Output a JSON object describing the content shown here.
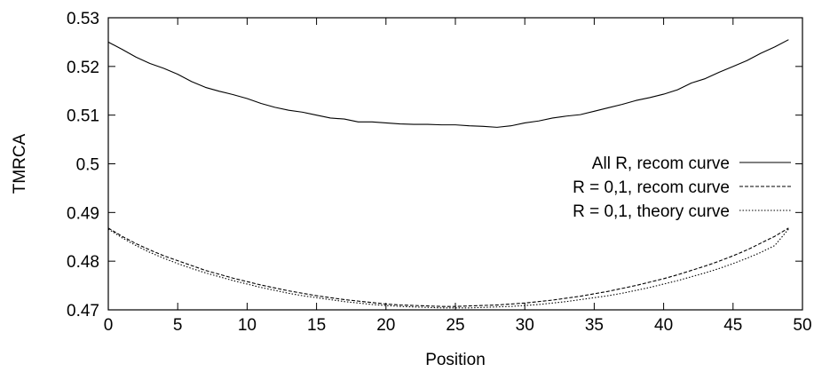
{
  "chart_data": {
    "type": "line",
    "title": "",
    "xlabel": "Position",
    "ylabel": "TMRCA",
    "xlim": [
      0,
      50
    ],
    "ylim": [
      0.47,
      0.53
    ],
    "xticks": [
      0,
      5,
      10,
      15,
      20,
      25,
      30,
      35,
      40,
      45,
      50
    ],
    "yticks": [
      0.47,
      0.48,
      0.49,
      0.5,
      0.51,
      0.52,
      0.53
    ],
    "xtick_labels": [
      "0",
      "5",
      "10",
      "15",
      "20",
      "25",
      "30",
      "35",
      "40",
      "45",
      "50"
    ],
    "ytick_labels": [
      "0.47",
      "0.48",
      "0.49",
      "0.5",
      "0.51",
      "0.52",
      "0.53"
    ],
    "grid": false,
    "legend_position": "right",
    "series": [
      {
        "name": "All R, recom curve",
        "style": "solid",
        "x": [
          0,
          1,
          2,
          3,
          4,
          5,
          6,
          7,
          8,
          9,
          10,
          11,
          12,
          13,
          14,
          15,
          16,
          17,
          18,
          19,
          20,
          21,
          22,
          23,
          24,
          25,
          26,
          27,
          28,
          29,
          30,
          31,
          32,
          33,
          34,
          35,
          36,
          37,
          38,
          39,
          40,
          41,
          42,
          43,
          44,
          45,
          46,
          47,
          48,
          49
        ],
        "y": [
          0.525,
          0.5235,
          0.5219,
          0.5206,
          0.5196,
          0.5184,
          0.5169,
          0.5157,
          0.5149,
          0.5142,
          0.5134,
          0.5124,
          0.5116,
          0.511,
          0.5106,
          0.51,
          0.5094,
          0.5092,
          0.5086,
          0.5086,
          0.5084,
          0.5082,
          0.5081,
          0.5081,
          0.508,
          0.508,
          0.5078,
          0.5077,
          0.5075,
          0.5078,
          0.5084,
          0.5088,
          0.5094,
          0.5098,
          0.5101,
          0.5108,
          0.5115,
          0.5122,
          0.513,
          0.5136,
          0.5143,
          0.5152,
          0.5166,
          0.5175,
          0.5188,
          0.52,
          0.5212,
          0.5227,
          0.524,
          0.5255
        ]
      },
      {
        "name": "R = 0,1, recom curve",
        "style": "dashed",
        "x": [
          0,
          1,
          2,
          3,
          4,
          5,
          6,
          7,
          8,
          9,
          10,
          11,
          12,
          13,
          14,
          15,
          16,
          17,
          18,
          19,
          20,
          21,
          22,
          23,
          24,
          25,
          26,
          27,
          28,
          29,
          30,
          31,
          32,
          33,
          34,
          35,
          36,
          37,
          38,
          39,
          40,
          41,
          42,
          43,
          44,
          45,
          46,
          47,
          48,
          49
        ],
        "y": [
          0.4868,
          0.4851,
          0.4836,
          0.4823,
          0.4811,
          0.4801,
          0.4791,
          0.4781,
          0.4773,
          0.4765,
          0.4758,
          0.4751,
          0.4745,
          0.4739,
          0.4734,
          0.4729,
          0.4725,
          0.4721,
          0.4718,
          0.4715,
          0.4712,
          0.471,
          0.4709,
          0.4708,
          0.4707,
          0.4707,
          0.4708,
          0.4709,
          0.471,
          0.4712,
          0.4714,
          0.4717,
          0.472,
          0.4724,
          0.4728,
          0.4733,
          0.4738,
          0.4744,
          0.475,
          0.4757,
          0.4764,
          0.4772,
          0.4781,
          0.479,
          0.48,
          0.4811,
          0.4823,
          0.4837,
          0.4851,
          0.4868
        ]
      },
      {
        "name": "R = 0,1, theory curve",
        "style": "dotted",
        "x": [
          0,
          1,
          2,
          3,
          4,
          5,
          6,
          7,
          8,
          9,
          10,
          11,
          12,
          13,
          14,
          15,
          16,
          17,
          18,
          19,
          20,
          21,
          22,
          23,
          24,
          25,
          26,
          27,
          28,
          29,
          30,
          31,
          32,
          33,
          34,
          35,
          36,
          37,
          38,
          39,
          40,
          41,
          42,
          43,
          44,
          45,
          46,
          47,
          48,
          49
        ],
        "y": [
          0.4866,
          0.4848,
          0.4832,
          0.4818,
          0.4806,
          0.4795,
          0.4785,
          0.4776,
          0.4768,
          0.476,
          0.4753,
          0.4746,
          0.474,
          0.4734,
          0.4729,
          0.4725,
          0.4721,
          0.4717,
          0.4714,
          0.4711,
          0.4709,
          0.4707,
          0.4706,
          0.4705,
          0.4704,
          0.4704,
          0.4704,
          0.4705,
          0.4706,
          0.4707,
          0.4709,
          0.4711,
          0.4714,
          0.4717,
          0.4721,
          0.4725,
          0.4729,
          0.4734,
          0.474,
          0.4746,
          0.4753,
          0.476,
          0.4768,
          0.4776,
          0.4785,
          0.4795,
          0.4806,
          0.4818,
          0.4832,
          0.4866
        ]
      }
    ]
  }
}
